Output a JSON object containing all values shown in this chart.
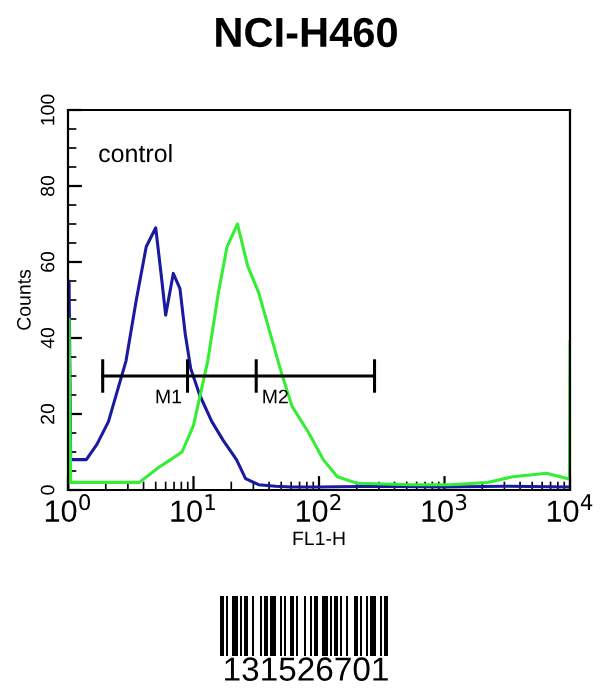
{
  "chart_data": {
    "type": "line",
    "title": "NCI-H460",
    "xlabel": "FL1-H",
    "ylabel": "Counts",
    "log": "x",
    "xlim": [
      1,
      10000
    ],
    "xticks": [
      {
        "value": 1,
        "label": "10$^{0}$"
      },
      {
        "value": 10,
        "label": "10$^{1}$"
      },
      {
        "value": 100,
        "label": "10$^{2}$"
      },
      {
        "value": 1000,
        "label": "10$^{3}$"
      },
      {
        "value": 10000,
        "label": "10$^{4}$"
      }
    ],
    "ylim": [
      0,
      100
    ],
    "yticks": [
      0,
      20,
      40,
      60,
      80,
      100
    ],
    "grid": false,
    "series": [
      {
        "color": "#1a1aa0",
        "x": [
          1,
          1.02,
          1.05,
          1.15,
          1.4,
          1.7,
          2.1,
          2.9,
          3.5,
          4.2,
          5,
          5.6,
          6,
          6.9,
          7.8,
          8.6,
          9.5,
          11.2,
          14,
          17.3,
          22,
          26,
          33,
          45,
          60,
          100,
          300,
          1000,
          3000,
          10000
        ],
        "values": [
          0,
          55,
          8,
          8,
          8,
          12,
          18,
          34,
          50,
          64,
          69,
          55,
          46,
          57,
          53,
          41,
          32,
          25,
          18,
          13,
          8,
          3,
          1.4,
          1,
          0.8,
          0.8,
          1,
          0.8,
          1,
          0.8
        ]
      },
      {
        "color": "#33ee33",
        "x": [
          1,
          1.02,
          1.05,
          1.2,
          2.7,
          3.7,
          5.3,
          6.6,
          8.1,
          10,
          13,
          15.8,
          18.5,
          22.4,
          27,
          33,
          41,
          50,
          61,
          83,
          108,
          140,
          200,
          550,
          1100,
          2200,
          3500,
          6500,
          9500,
          9900,
          10000
        ],
        "values": [
          0,
          45,
          2,
          2,
          2,
          2,
          6,
          8,
          10,
          17,
          34,
          52,
          64,
          70,
          59,
          52,
          41,
          31,
          22,
          15,
          8,
          3.5,
          1.8,
          1.4,
          1.4,
          2,
          3.5,
          4.4,
          3,
          3,
          39
        ]
      },
      {
        "type": "line",
        "color": "#000000",
        "x": [
          1.89,
          8.96,
          31.6,
          277
        ],
        "values": [
          30,
          30,
          30,
          30
        ],
        "errors": [
          4,
          4,
          4,
          4
        ]
      }
    ],
    "annotations": [
      "control",
      {
        "text": "M1",
        "x": 8.96,
        "y": 30
      },
      {
        "text": "M2",
        "x": 31.6,
        "y": 30
      },
      "131526701"
    ]
  }
}
